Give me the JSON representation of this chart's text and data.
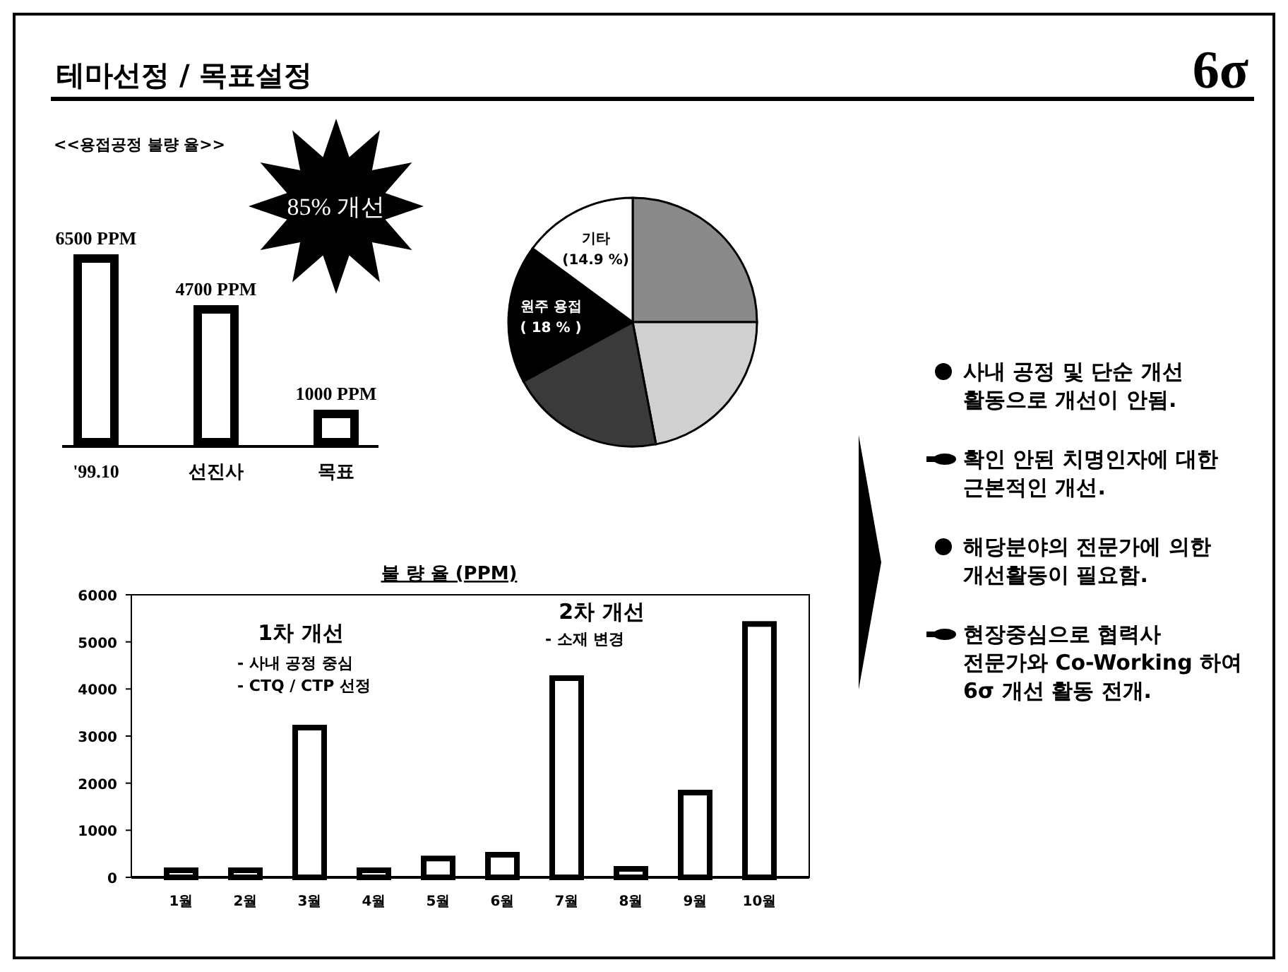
{
  "chart_data": [
    {
      "type": "other",
      "title": "테마선정 / 목표설정",
      "subtitle": "6σ",
      "annotations": [
        "사내 공정 및 단순 개선 활동으로 개선이 안됨.",
        "확인 안된 치명인자에 대한 근본적인 개선.",
        "해당분야의 전문가에 의한 개선활동이 필요함.",
        "현장중심으로 협력사 전문가와 Co-Working 하여 6σ 개선 활동 전개."
      ]
    },
    {
      "type": "bar",
      "title": "<<용접공정 불량 율>>",
      "categories": [
        "'99.10",
        "선진사",
        "목표"
      ],
      "values": [
        6500,
        4700,
        1000
      ],
      "value_labels": [
        "6500 PPM",
        "4700 PPM",
        "1000 PPM"
      ],
      "color": "#000000",
      "annotations": [
        "85% 개선"
      ]
    },
    {
      "type": "pie",
      "categories": [
        null,
        null,
        null,
        "원주 용접",
        "기타"
      ],
      "values": [
        25,
        22,
        20.1,
        18,
        14.9
      ],
      "value_labels": [
        null,
        null,
        null,
        "( 18 % )",
        "(14.9 %)"
      ],
      "colors": [
        "#8a8a8a",
        "#d0d0d0",
        "#3a3a3a",
        "#000000",
        "#ffffff"
      ]
    },
    {
      "type": "bar",
      "title": "불 량 율 (PPM)",
      "categories": [
        "1월",
        "2월",
        "3월",
        "4월",
        "5월",
        "6월",
        "7월",
        "8월",
        "9월",
        "10월"
      ],
      "values": [
        150,
        150,
        3180,
        150,
        400,
        480,
        4230,
        180,
        1800,
        5380
      ],
      "color": "#000000",
      "ylim": [
        0,
        6000
      ],
      "yticks": [
        0,
        1000,
        2000,
        3000,
        4000,
        5000,
        6000
      ],
      "annotations": [
        "1차 개선",
        "- 사내 공정 중심",
        "- CTQ / CTP 선정",
        "2차 개선",
        "- 소재 변경"
      ]
    }
  ]
}
